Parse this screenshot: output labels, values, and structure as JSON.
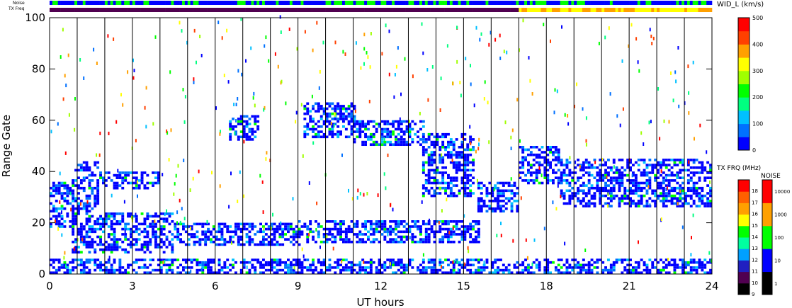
{
  "header": {
    "noise_label": "Noise",
    "txfreq_label": "TX Freq"
  },
  "chart_data": {
    "type": "heatmap",
    "xlabel": "UT hours",
    "ylabel": "Range Gate",
    "xlim": [
      0,
      24
    ],
    "ylim": [
      0,
      100
    ],
    "x_ticks": [
      "0",
      "3",
      "6",
      "9",
      "12",
      "15",
      "18",
      "21",
      "24"
    ],
    "y_ticks": [
      "0",
      "20",
      "40",
      "60",
      "80",
      "100"
    ],
    "hour_gridlines": [
      1,
      2,
      3,
      4,
      5,
      6,
      7,
      8,
      9,
      10,
      11,
      12,
      13,
      14,
      15,
      16,
      17,
      18,
      19,
      20,
      21,
      22,
      23
    ],
    "echo_bands": [
      {
        "t0": 0.0,
        "t1": 0.8,
        "g0": 18,
        "g1": 36
      },
      {
        "t0": 0.8,
        "t1": 1.8,
        "g0": 24,
        "g1": 44
      },
      {
        "t0": 1.8,
        "t1": 4.0,
        "g0": 33,
        "g1": 40
      },
      {
        "t0": 0.8,
        "t1": 4.5,
        "g0": 8,
        "g1": 24
      },
      {
        "t0": 4.5,
        "t1": 9.0,
        "g0": 11,
        "g1": 20
      },
      {
        "t0": 9.0,
        "t1": 15.5,
        "g0": 12,
        "g1": 21
      },
      {
        "t0": 6.5,
        "t1": 7.5,
        "g0": 52,
        "g1": 62
      },
      {
        "t0": 9.2,
        "t1": 11.0,
        "g0": 53,
        "g1": 67
      },
      {
        "t0": 11.0,
        "t1": 13.5,
        "g0": 50,
        "g1": 60
      },
      {
        "t0": 13.5,
        "t1": 15.3,
        "g0": 30,
        "g1": 55
      },
      {
        "t0": 15.5,
        "t1": 17.0,
        "g0": 24,
        "g1": 36
      },
      {
        "t0": 17.0,
        "t1": 18.5,
        "g0": 35,
        "g1": 50
      },
      {
        "t0": 18.5,
        "t1": 24.0,
        "g0": 26,
        "g1": 45
      },
      {
        "t0": 0.0,
        "t1": 24.0,
        "g0": 0,
        "g1": 6
      }
    ],
    "wid_colorbar": {
      "title": "WID_L (km/s)",
      "ticks": [
        "0",
        "100",
        "200",
        "300",
        "400",
        "500"
      ],
      "range": [
        0,
        500
      ]
    },
    "freq_colorbar": {
      "title": "TX FRQ (MHz)",
      "ticks": [
        "9",
        "10",
        "11",
        "12",
        "13",
        "14",
        "15",
        "16",
        "17",
        "18"
      ]
    },
    "noise_colorbar": {
      "title": "NOISE",
      "ticks": [
        "1",
        "10",
        "100",
        "1000",
        "10000"
      ]
    }
  },
  "colors": {
    "widthScale": [
      "#0000ff",
      "#0070ff",
      "#00c0ff",
      "#00ff80",
      "#00ff00",
      "#a0ff00",
      "#ffff00",
      "#ffa000",
      "#ff4000",
      "#ff0000"
    ],
    "freqScale": [
      "#000000",
      "#500050",
      "#2020c0",
      "#00a0ff",
      "#00ffa0",
      "#00ff00",
      "#ffff00",
      "#ffa000",
      "#ff6000",
      "#ff0000"
    ],
    "noiseScale": [
      "#000000",
      "#0000ff",
      "#00ff00",
      "#ffa000",
      "#ff0000"
    ]
  }
}
